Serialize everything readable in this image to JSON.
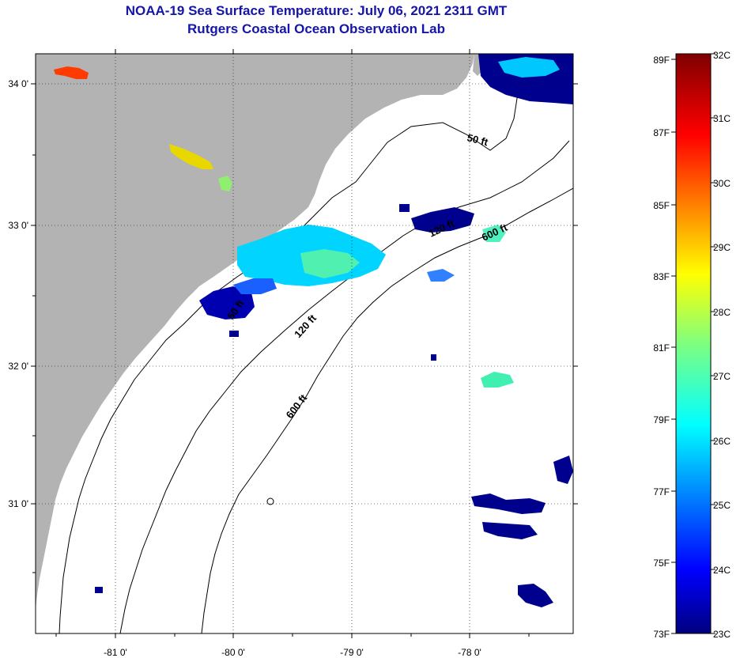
{
  "title": {
    "line1": "NOAA-19 Sea Surface Temperature:  July 06, 2021 2311 GMT",
    "line2": "Rutgers Coastal Ocean Observation Lab"
  },
  "map": {
    "lon_ticks": [
      "-81 0'",
      "-80 0'",
      "-79 0'",
      "-78 0'"
    ],
    "lat_ticks": [
      "34 0'",
      "33 0'",
      "32 0'",
      "31 0'"
    ],
    "contour_labels": [
      "50 ft",
      "120 ft",
      "600 ft",
      "50 ft",
      "120 ft",
      "600 ft"
    ],
    "land_color": "#b3b3b3",
    "ocean_color": "#ffffff"
  },
  "colorbar": {
    "fahrenheit_labels": [
      "89F",
      "87F",
      "85F",
      "83F",
      "81F",
      "79F",
      "77F",
      "75F",
      "73F"
    ],
    "celsius_labels": [
      "32C",
      "31C",
      "30C",
      "29C",
      "28C",
      "27C",
      "26C",
      "25C",
      "24C",
      "23C"
    ],
    "colormap": "jet",
    "min_c": 23,
    "max_c": 32
  }
}
